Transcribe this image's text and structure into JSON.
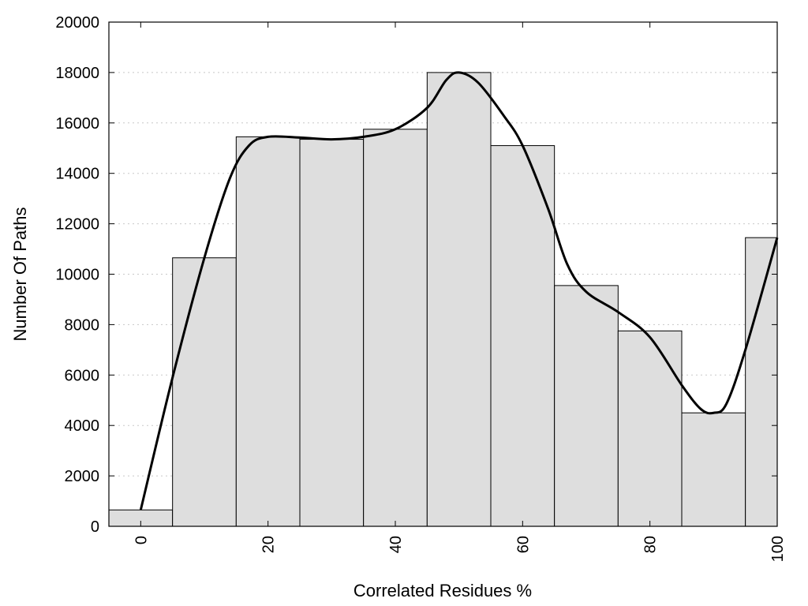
{
  "chart_data": {
    "type": "bar",
    "xlabel": "Correlated Residues %",
    "ylabel": "Number Of Paths",
    "xlim": [
      -5,
      100
    ],
    "ylim": [
      0,
      20000
    ],
    "yticks": [
      0,
      2000,
      4000,
      6000,
      8000,
      10000,
      12000,
      14000,
      16000,
      18000,
      20000
    ],
    "xticks": [
      0,
      20,
      40,
      60,
      80,
      100
    ],
    "bin_width": 10,
    "bins": [
      {
        "x": 0,
        "value": 650
      },
      {
        "x": 10,
        "value": 10650
      },
      {
        "x": 20,
        "value": 15450
      },
      {
        "x": 30,
        "value": 15350
      },
      {
        "x": 40,
        "value": 15750
      },
      {
        "x": 50,
        "value": 18000
      },
      {
        "x": 60,
        "value": 15100
      },
      {
        "x": 70,
        "value": 9550
      },
      {
        "x": 80,
        "value": 7750
      },
      {
        "x": 90,
        "value": 4500
      },
      {
        "x": 100,
        "value": 11450
      }
    ],
    "curve": [
      {
        "x": 0,
        "y": 650
      },
      {
        "x": 5,
        "y": 5900
      },
      {
        "x": 10,
        "y": 10650
      },
      {
        "x": 14,
        "y": 13800
      },
      {
        "x": 17,
        "y": 15100
      },
      {
        "x": 20,
        "y": 15450
      },
      {
        "x": 25,
        "y": 15420
      },
      {
        "x": 30,
        "y": 15350
      },
      {
        "x": 35,
        "y": 15450
      },
      {
        "x": 40,
        "y": 15750
      },
      {
        "x": 45,
        "y": 16600
      },
      {
        "x": 48,
        "y": 17700
      },
      {
        "x": 50,
        "y": 18000
      },
      {
        "x": 53,
        "y": 17600
      },
      {
        "x": 57,
        "y": 16300
      },
      {
        "x": 60,
        "y": 15100
      },
      {
        "x": 64,
        "y": 12600
      },
      {
        "x": 67,
        "y": 10400
      },
      {
        "x": 70,
        "y": 9300
      },
      {
        "x": 75,
        "y": 8500
      },
      {
        "x": 80,
        "y": 7500
      },
      {
        "x": 85,
        "y": 5600
      },
      {
        "x": 88,
        "y": 4650
      },
      {
        "x": 90,
        "y": 4500
      },
      {
        "x": 92,
        "y": 4850
      },
      {
        "x": 95,
        "y": 7000
      },
      {
        "x": 100,
        "y": 11450
      }
    ],
    "grid": "horizontal-dotted"
  }
}
